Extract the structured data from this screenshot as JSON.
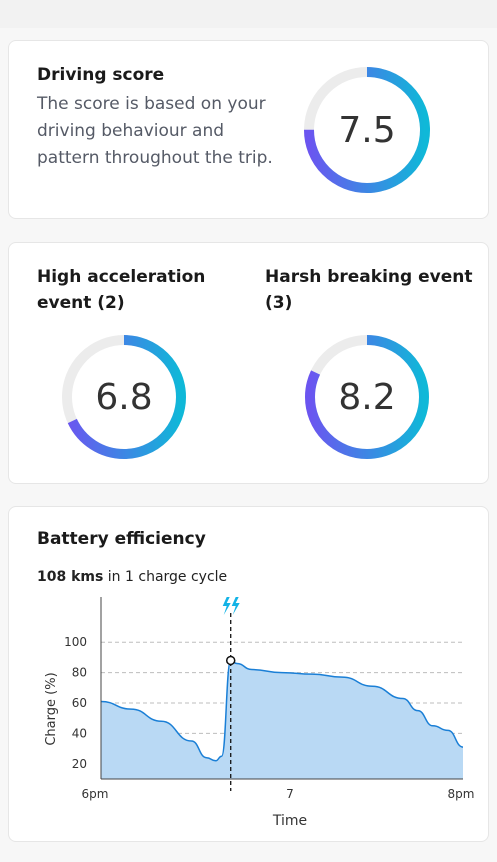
{
  "driving": {
    "title": "Driving score",
    "description": "The score is based on your driving behaviour and pattern throughout the trip.",
    "score": "7.5",
    "fraction": 0.75
  },
  "events": {
    "accel": {
      "title": "High acceleration event (2)",
      "score": "6.8",
      "fraction": 0.68
    },
    "brake": {
      "title": "Harsh breaking event (3)",
      "score": "8.2",
      "fraction": 0.82
    }
  },
  "battery": {
    "title": "Battery efficiency",
    "distance": "108 kms",
    "distance_suffix": "in 1 charge cycle"
  },
  "chart_data": {
    "type": "area",
    "xlabel": "Time",
    "ylabel": "Charge (%)",
    "x_ticks": [
      "6pm",
      "7",
      "8pm"
    ],
    "y_ticks": [
      20,
      40,
      60,
      80,
      100
    ],
    "ylim": [
      10,
      110
    ],
    "xlim": [
      0,
      120
    ],
    "x_minutes": [
      0,
      10,
      20,
      30,
      35,
      38,
      40,
      43,
      45,
      50,
      60,
      70,
      80,
      90,
      100,
      105,
      110,
      115,
      120
    ],
    "y_percent": [
      61,
      56,
      48,
      35,
      24,
      22,
      25,
      88,
      86,
      82,
      80,
      79,
      77,
      71,
      63,
      55,
      45,
      42,
      31
    ],
    "charge_event_minute": 43,
    "grid": true,
    "colors": {
      "line": "#1a7fd6",
      "fill": "#b9d9f4",
      "charge_icon": "#12b3e6"
    }
  }
}
